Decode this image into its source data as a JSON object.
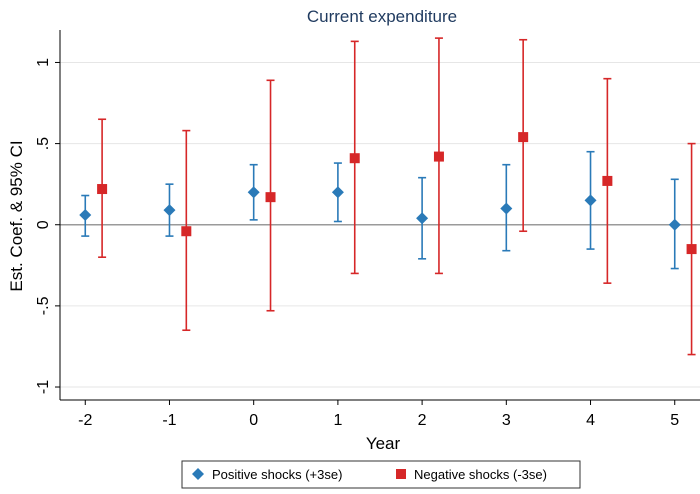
{
  "chart_data": {
    "type": "scatter",
    "title": "Current expenditure",
    "xlabel": "Year",
    "ylabel": "Est. Coef. & 95% CI",
    "x_ticks": [
      "-2",
      "-1",
      "0",
      "1",
      "2",
      "3",
      "4",
      "5"
    ],
    "y_ticks": [
      "-1",
      "-.5",
      "0",
      ".5",
      "1"
    ],
    "y_tick_values": [
      -1,
      -0.5,
      0,
      0.5,
      1
    ],
    "xlim": [
      -2.3,
      5.3
    ],
    "ylim": [
      -1.08,
      1.2
    ],
    "grid": true,
    "legend_position": "bottom",
    "series": [
      {
        "name": "Positive shocks (+3se)",
        "marker": "diamond",
        "color": "#2a7ab8",
        "points": [
          {
            "x": -2,
            "y": 0.06,
            "lo": -0.07,
            "hi": 0.18
          },
          {
            "x": -1,
            "y": 0.09,
            "lo": -0.07,
            "hi": 0.25
          },
          {
            "x": 0,
            "y": 0.2,
            "lo": 0.03,
            "hi": 0.37
          },
          {
            "x": 1,
            "y": 0.2,
            "lo": 0.02,
            "hi": 0.38
          },
          {
            "x": 2,
            "y": 0.04,
            "lo": -0.21,
            "hi": 0.29
          },
          {
            "x": 3,
            "y": 0.1,
            "lo": -0.16,
            "hi": 0.37
          },
          {
            "x": 4,
            "y": 0.15,
            "lo": -0.15,
            "hi": 0.45
          },
          {
            "x": 5,
            "y": 0.0,
            "lo": -0.27,
            "hi": 0.28
          }
        ]
      },
      {
        "name": "Negative shocks (-3se)",
        "marker": "square",
        "color": "#d62728",
        "points": [
          {
            "x": -1.8,
            "y": 0.22,
            "lo": -0.2,
            "hi": 0.65
          },
          {
            "x": -0.8,
            "y": -0.04,
            "lo": -0.65,
            "hi": 0.58
          },
          {
            "x": 0.2,
            "y": 0.17,
            "lo": -0.53,
            "hi": 0.89
          },
          {
            "x": 1.2,
            "y": 0.41,
            "lo": -0.3,
            "hi": 1.13
          },
          {
            "x": 2.2,
            "y": 0.42,
            "lo": -0.3,
            "hi": 1.15
          },
          {
            "x": 3.2,
            "y": 0.54,
            "lo": -0.04,
            "hi": 1.14
          },
          {
            "x": 4.2,
            "y": 0.27,
            "lo": -0.36,
            "hi": 0.9
          },
          {
            "x": 5.2,
            "y": -0.15,
            "lo": -0.8,
            "hi": 0.5
          }
        ]
      }
    ]
  }
}
